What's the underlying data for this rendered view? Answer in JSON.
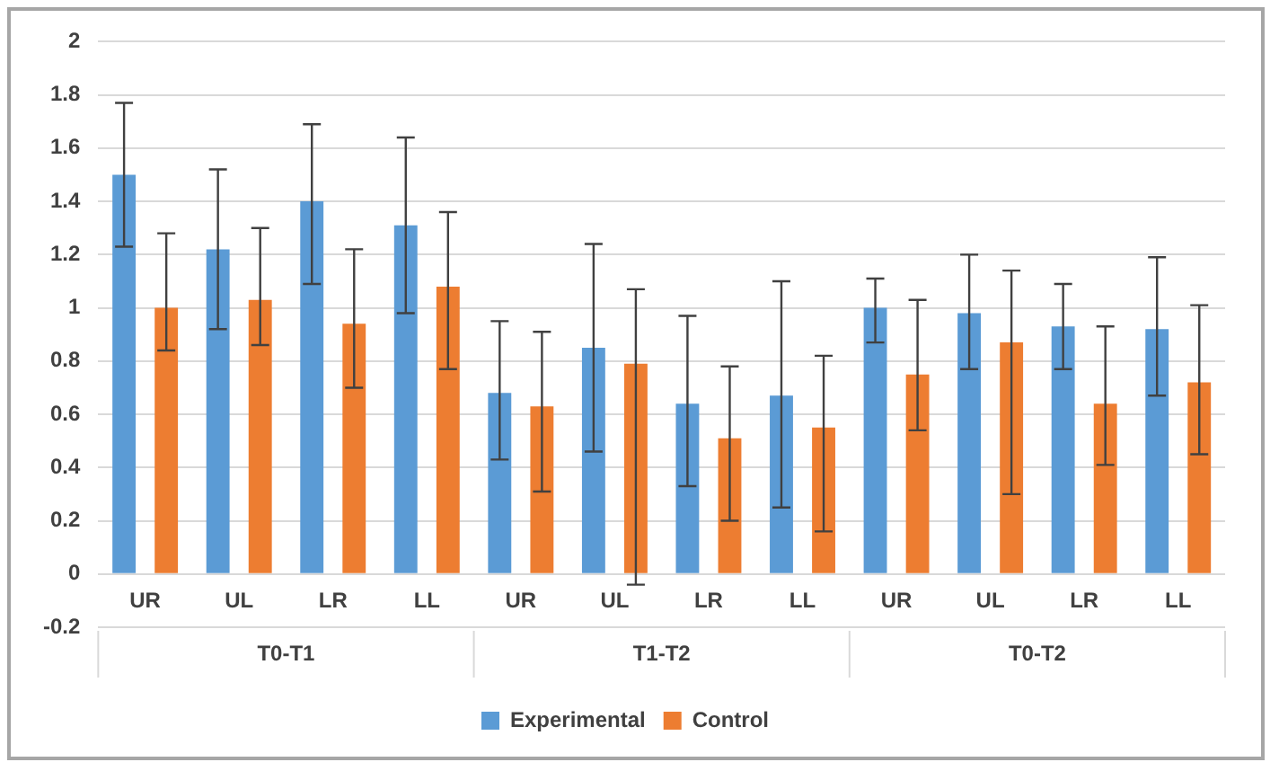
{
  "chart_data": {
    "type": "bar",
    "categories": [
      "UR",
      "UL",
      "LR",
      "LL",
      "UR",
      "UL",
      "LR",
      "LL",
      "UR",
      "UL",
      "LR",
      "LL"
    ],
    "annotations": [
      "T0-T1",
      "T1-T2",
      "T0-T2"
    ],
    "series": [
      {
        "name": "Experimental",
        "color": "#5b9bd5",
        "values": [
          1.5,
          1.22,
          1.4,
          1.31,
          0.68,
          0.85,
          0.64,
          0.67,
          1.0,
          0.98,
          0.93,
          0.92
        ],
        "errors": [
          [
            1.23,
            1.77
          ],
          [
            0.92,
            1.52
          ],
          [
            1.09,
            1.69
          ],
          [
            0.98,
            1.64
          ],
          [
            0.43,
            0.95
          ],
          [
            0.46,
            1.24
          ],
          [
            0.33,
            0.97
          ],
          [
            0.25,
            1.1
          ],
          [
            0.87,
            1.11
          ],
          [
            0.77,
            1.2
          ],
          [
            0.77,
            1.09
          ],
          [
            0.67,
            1.19
          ]
        ]
      },
      {
        "name": "Control",
        "color": "#ed7d31",
        "values": [
          1.0,
          1.03,
          0.94,
          1.08,
          0.63,
          0.79,
          0.51,
          0.55,
          0.75,
          0.87,
          0.64,
          0.72
        ],
        "errors": [
          [
            0.84,
            1.28
          ],
          [
            0.86,
            1.3
          ],
          [
            0.7,
            1.22
          ],
          [
            0.77,
            1.36
          ],
          [
            0.31,
            0.91
          ],
          [
            -0.04,
            1.07
          ],
          [
            0.2,
            0.78
          ],
          [
            0.16,
            0.82
          ],
          [
            0.54,
            1.03
          ],
          [
            0.3,
            1.14
          ],
          [
            0.41,
            0.93
          ],
          [
            0.45,
            1.01
          ]
        ]
      }
    ],
    "ylim": [
      -0.2,
      2
    ],
    "yticks": [
      -0.2,
      0,
      0.2,
      0.4,
      0.6,
      0.8,
      1,
      1.2,
      1.4,
      1.6,
      1.8,
      2
    ],
    "grid": "y",
    "legend": "bottom"
  }
}
